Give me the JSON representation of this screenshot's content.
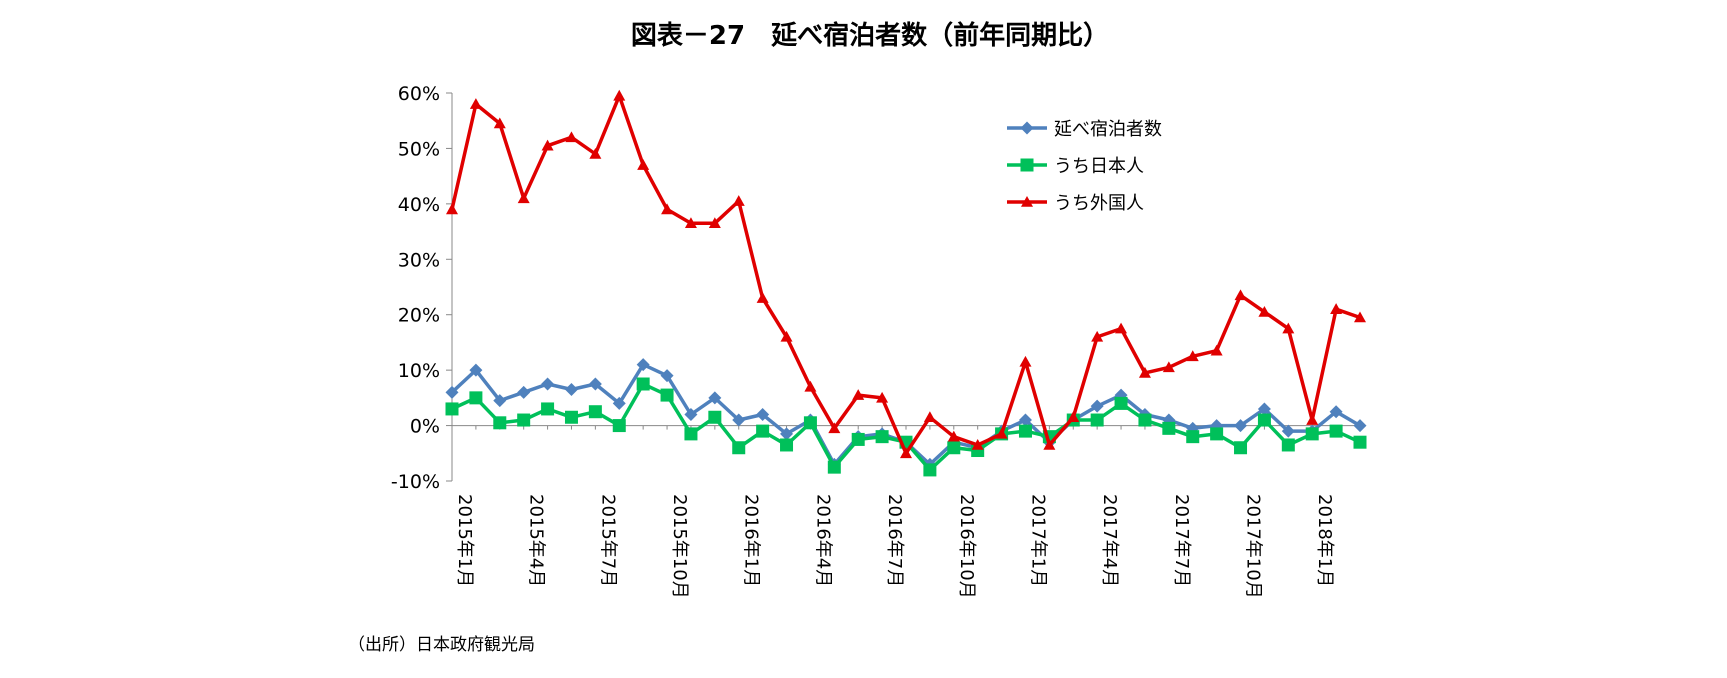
{
  "chart_data": {
    "type": "line",
    "title": "図表－27　延べ宿泊者数（前年同期比）",
    "source": "（出所）日本政府観光局",
    "xlabel": "",
    "ylabel": "",
    "ylim": [
      -10,
      60
    ],
    "y_ticks": [
      "60%",
      "50%",
      "40%",
      "30%",
      "20%",
      "10%",
      "0%",
      "-10%"
    ],
    "y_tick_values": [
      60,
      50,
      40,
      30,
      20,
      10,
      0,
      -10
    ],
    "x_ticks": [
      {
        "label": "2015年1月",
        "index": 0
      },
      {
        "label": "2015年4月",
        "index": 3
      },
      {
        "label": "2015年7月",
        "index": 6
      },
      {
        "label": "2015年10月",
        "index": 9
      },
      {
        "label": "2016年1月",
        "index": 12
      },
      {
        "label": "2016年4月",
        "index": 15
      },
      {
        "label": "2016年7月",
        "index": 18
      },
      {
        "label": "2016年10月",
        "index": 21
      },
      {
        "label": "2017年1月",
        "index": 24
      },
      {
        "label": "2017年4月",
        "index": 27
      },
      {
        "label": "2017年7月",
        "index": 30
      },
      {
        "label": "2017年10月",
        "index": 33
      },
      {
        "label": "2018年1月",
        "index": 36
      }
    ],
    "legend_position": "top-right",
    "series": [
      {
        "name": "延べ宿泊者数",
        "color": "#4f81bd",
        "marker": "diamond",
        "values": [
          6,
          10,
          4.5,
          6,
          7.5,
          6.5,
          7.5,
          4,
          11,
          9,
          2,
          5,
          1,
          2,
          -1.5,
          1,
          -7,
          -2,
          -1.5,
          -3,
          -7,
          -3,
          -4,
          -1,
          1,
          -3,
          1,
          3.5,
          5.5,
          2,
          1,
          -0.5,
          0,
          0,
          3,
          -1,
          -1,
          2.5,
          0
        ]
      },
      {
        "name": "うち日本人",
        "color": "#00c05a",
        "marker": "square",
        "values": [
          3,
          5,
          0.5,
          1,
          3,
          1.5,
          2.5,
          0,
          7.5,
          5.5,
          -1.5,
          1.5,
          -4,
          -1,
          -3.5,
          0.5,
          -7.5,
          -2.5,
          -2,
          -3,
          -8,
          -4,
          -4.5,
          -1.5,
          -1,
          -2,
          1,
          1,
          4,
          1,
          -0.5,
          -2,
          -1.5,
          -4,
          1,
          -3.5,
          -1.5,
          -1,
          -3
        ]
      },
      {
        "name": "うち外国人",
        "color": "#e00000",
        "marker": "triangle",
        "values": [
          39,
          58,
          54.5,
          41,
          50.5,
          52,
          49,
          59.5,
          47,
          39,
          36.5,
          36.5,
          40.5,
          23,
          16,
          7,
          -0.5,
          5.5,
          5,
          -5,
          1.5,
          -2,
          -3.5,
          -1.5,
          11.5,
          -3.5,
          1.5,
          16,
          17.5,
          9.5,
          10.5,
          12.5,
          13.5,
          23.5,
          20.5,
          17.5,
          1,
          21,
          19.5
        ]
      }
    ]
  }
}
